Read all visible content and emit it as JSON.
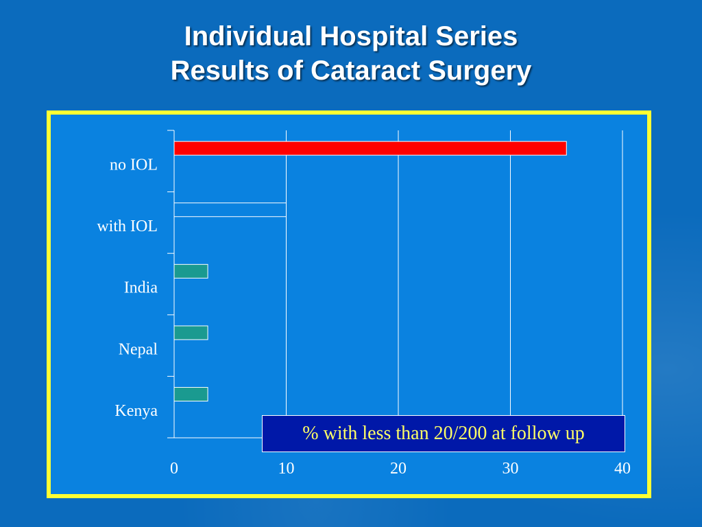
{
  "slide": {
    "title_line1": "Individual Hospital Series",
    "title_line2": "Results of Cataract Surgery"
  },
  "colors": {
    "background": "#0b6bbd",
    "frame_border": "#ffff33",
    "frame_fill": "#0a82e0",
    "bar_red": "#ff0000",
    "bar_outline": "#0a82e0",
    "bar_teal": "#1a9a90",
    "legend_fill": "#0018a8",
    "legend_text": "#ffff66"
  },
  "chart_data": {
    "type": "bar",
    "orientation": "horizontal",
    "categories": [
      "no IOL",
      "with IOL",
      "India",
      "Nepal",
      "Kenya"
    ],
    "values": [
      35,
      10,
      3,
      3,
      3
    ],
    "bar_colors": [
      "#ff0000",
      "#0a82e0",
      "#1a9a90",
      "#1a9a90",
      "#1a9a90"
    ],
    "xlim": [
      0,
      40
    ],
    "xticks": [
      "0",
      "10",
      "20",
      "30",
      "40"
    ],
    "grid": true,
    "legend_text": "% with less than 20/200 at follow up",
    "legend_placement": "bottom-right"
  }
}
